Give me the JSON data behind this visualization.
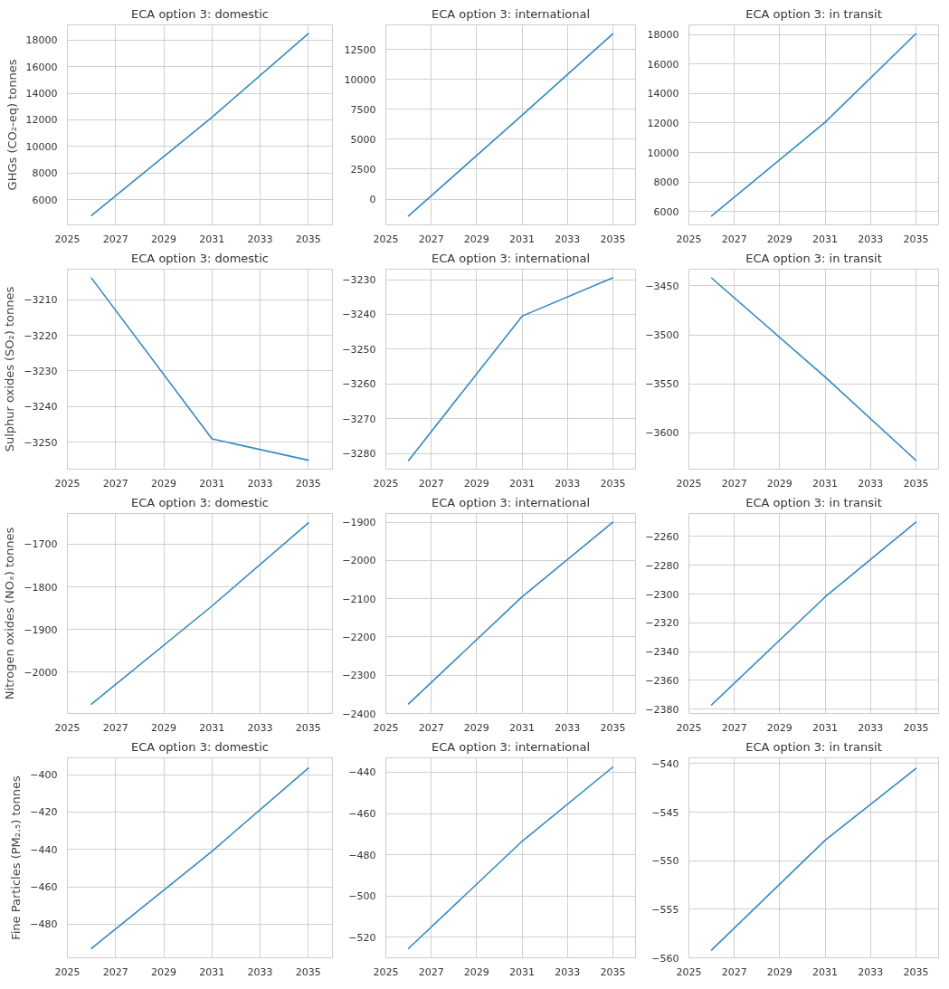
{
  "chart_data": [
    {
      "type": "line",
      "title": "ECA option 3: domestic",
      "ylabel": "GHGs (CO₂-eq) tonnes",
      "x": [
        2026,
        2031,
        2035
      ],
      "series": [
        {
          "color": "#348abd",
          "values": [
            4800,
            12200,
            18500
          ]
        }
      ],
      "xlim": [
        2025,
        2036
      ],
      "xticks": [
        2025,
        2027,
        2029,
        2031,
        2033,
        2035
      ],
      "ylim": [
        4100,
        19150
      ],
      "yticks": [
        6000,
        8000,
        10000,
        12000,
        14000,
        16000,
        18000
      ],
      "grid": true
    },
    {
      "type": "line",
      "title": "ECA option 3: international",
      "x": [
        2026,
        2031,
        2035
      ],
      "series": [
        {
          "color": "#348abd",
          "values": [
            -1400,
            7000,
            13800
          ]
        }
      ],
      "xlim": [
        2025,
        2036
      ],
      "xticks": [
        2025,
        2027,
        2029,
        2031,
        2033,
        2035
      ],
      "ylim": [
        -2150,
        14550
      ],
      "yticks": [
        0,
        2500,
        5000,
        7500,
        10000,
        12500
      ],
      "grid": true
    },
    {
      "type": "line",
      "title": "ECA option 3: in transit",
      "x": [
        2026,
        2031,
        2035
      ],
      "series": [
        {
          "color": "#348abd",
          "values": [
            5700,
            12050,
            18050
          ]
        }
      ],
      "xlim": [
        2025,
        2036
      ],
      "xticks": [
        2025,
        2027,
        2029,
        2031,
        2033,
        2035
      ],
      "ylim": [
        5100,
        18650
      ],
      "yticks": [
        6000,
        8000,
        10000,
        12000,
        14000,
        16000,
        18000
      ],
      "grid": true
    },
    {
      "type": "line",
      "title": "ECA option 3: domestic",
      "ylabel": "Sulphur oxides (SO₂) tonnes",
      "x": [
        2026,
        2031,
        2035
      ],
      "series": [
        {
          "color": "#348abd",
          "values": [
            -3204,
            -3249,
            -3255
          ]
        }
      ],
      "xlim": [
        2025,
        2036
      ],
      "xticks": [
        2025,
        2027,
        2029,
        2031,
        2033,
        2035
      ],
      "ylim": [
        -3257.5,
        -3201.5
      ],
      "yticks": [
        -3250,
        -3240,
        -3230,
        -3220,
        -3210
      ],
      "grid": true
    },
    {
      "type": "line",
      "title": "ECA option 3: international",
      "x": [
        2026,
        2031,
        2035
      ],
      "series": [
        {
          "color": "#348abd",
          "values": [
            -3282,
            -3240.5,
            -3229.5
          ]
        }
      ],
      "xlim": [
        2025,
        2036
      ],
      "xticks": [
        2025,
        2027,
        2029,
        2031,
        2033,
        2035
      ],
      "ylim": [
        -3284.5,
        -3227
      ],
      "yticks": [
        -3280,
        -3270,
        -3260,
        -3250,
        -3240,
        -3230
      ],
      "grid": true
    },
    {
      "type": "line",
      "title": "ECA option 3: in transit",
      "x": [
        2026,
        2031,
        2035
      ],
      "series": [
        {
          "color": "#348abd",
          "values": [
            -3442,
            -3543,
            -3628
          ]
        }
      ],
      "xlim": [
        2025,
        2036
      ],
      "xticks": [
        2025,
        2027,
        2029,
        2031,
        2033,
        2035
      ],
      "ylim": [
        -3637,
        -3433
      ],
      "yticks": [
        -3600,
        -3550,
        -3500,
        -3450
      ],
      "grid": true
    },
    {
      "type": "line",
      "title": "ECA option 3: domestic",
      "ylabel": "Nitrogen oxides (NOₓ) tonnes",
      "x": [
        2026,
        2031,
        2035
      ],
      "series": [
        {
          "color": "#348abd",
          "values": [
            -2075,
            -1845,
            -1650
          ]
        }
      ],
      "xlim": [
        2025,
        2036
      ],
      "xticks": [
        2025,
        2027,
        2029,
        2031,
        2033,
        2035
      ],
      "ylim": [
        -2097,
        -1628
      ],
      "yticks": [
        -2000,
        -1900,
        -1800,
        -1700
      ],
      "grid": true
    },
    {
      "type": "line",
      "title": "ECA option 3: international",
      "x": [
        2026,
        2031,
        2035
      ],
      "series": [
        {
          "color": "#348abd",
          "values": [
            -2375,
            -2095,
            -1900
          ]
        }
      ],
      "xlim": [
        2025,
        2036
      ],
      "xticks": [
        2025,
        2027,
        2029,
        2031,
        2033,
        2035
      ],
      "ylim": [
        -2400,
        -1877
      ],
      "yticks": [
        -2400,
        -2300,
        -2200,
        -2100,
        -2000,
        -1900
      ],
      "grid": true
    },
    {
      "type": "line",
      "title": "ECA option 3: in transit",
      "x": [
        2026,
        2031,
        2035
      ],
      "series": [
        {
          "color": "#348abd",
          "values": [
            -2377,
            -2302,
            -2250
          ]
        }
      ],
      "xlim": [
        2025,
        2036
      ],
      "xticks": [
        2025,
        2027,
        2029,
        2031,
        2033,
        2035
      ],
      "ylim": [
        -2383,
        -2244
      ],
      "yticks": [
        -2380,
        -2360,
        -2340,
        -2320,
        -2300,
        -2280,
        -2260
      ],
      "grid": true
    },
    {
      "type": "line",
      "title": "ECA option 3: domestic",
      "ylabel": "Fine Particles (PM₂.₅) tonnes",
      "x": [
        2026,
        2031,
        2035
      ],
      "series": [
        {
          "color": "#348abd",
          "values": [
            -493,
            -441,
            -396.5
          ]
        }
      ],
      "xlim": [
        2025,
        2036
      ],
      "xticks": [
        2025,
        2027,
        2029,
        2031,
        2033,
        2035
      ],
      "ylim": [
        -498,
        -391
      ],
      "yticks": [
        -480,
        -460,
        -440,
        -420,
        -400
      ],
      "grid": true
    },
    {
      "type": "line",
      "title": "ECA option 3: international",
      "x": [
        2026,
        2031,
        2035
      ],
      "series": [
        {
          "color": "#348abd",
          "values": [
            -525.5,
            -473.5,
            -437.5
          ]
        }
      ],
      "xlim": [
        2025,
        2036
      ],
      "xticks": [
        2025,
        2027,
        2029,
        2031,
        2033,
        2035
      ],
      "ylim": [
        -530,
        -433
      ],
      "yticks": [
        -520,
        -500,
        -480,
        -460,
        -440
      ],
      "grid": true
    },
    {
      "type": "line",
      "title": "ECA option 3: in transit",
      "x": [
        2026,
        2031,
        2035
      ],
      "series": [
        {
          "color": "#348abd",
          "values": [
            -559.2,
            -547.9,
            -540.5
          ]
        }
      ],
      "xlim": [
        2025,
        2036
      ],
      "xticks": [
        2025,
        2027,
        2029,
        2031,
        2033,
        2035
      ],
      "ylim": [
        -560,
        -539.4
      ],
      "yticks": [
        -560,
        -555,
        -550,
        -545,
        -540
      ],
      "grid": true
    }
  ]
}
